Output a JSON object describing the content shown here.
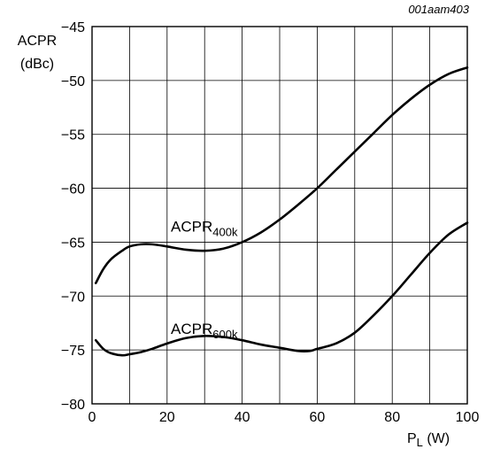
{
  "figure_code": "001aam403",
  "chart_data": {
    "type": "line",
    "ylabel_line1": "ACPR",
    "ylabel_line2": "(dBc)",
    "xlabel_main": "P",
    "xlabel_sub": "L",
    "xlabel_unit": " (W)",
    "xlim": [
      0,
      100
    ],
    "ylim": [
      -80,
      -45
    ],
    "x_ticks": [
      0,
      20,
      40,
      60,
      80,
      100
    ],
    "y_ticks": [
      -80,
      -75,
      -70,
      -65,
      -60,
      -55,
      -50,
      -45
    ],
    "x_tick_labels": [
      "0",
      "20",
      "40",
      "60",
      "80",
      "100"
    ],
    "y_tick_labels": [
      "−80",
      "−75",
      "−70",
      "−65",
      "−60",
      "−55",
      "−50",
      "−45"
    ],
    "grid": true,
    "series": [
      {
        "label_main": "ACPR",
        "label_sub": "400k",
        "label_at": [
          21,
          -64
        ],
        "x": [
          1,
          3,
          5,
          8,
          10,
          13,
          16,
          20,
          25,
          30,
          35,
          40,
          45,
          50,
          55,
          60,
          65,
          70,
          75,
          80,
          85,
          90,
          95,
          100
        ],
        "y": [
          -68.8,
          -67.5,
          -66.6,
          -65.8,
          -65.4,
          -65.2,
          -65.2,
          -65.4,
          -65.7,
          -65.8,
          -65.6,
          -65.0,
          -64.1,
          -62.9,
          -61.5,
          -60.0,
          -58.3,
          -56.6,
          -54.9,
          -53.2,
          -51.7,
          -50.4,
          -49.4,
          -48.8
        ]
      },
      {
        "label_main": "ACPR",
        "label_sub": "600k",
        "label_at": [
          21,
          -73.5
        ],
        "x": [
          1,
          3,
          5,
          8,
          10,
          13,
          16,
          20,
          25,
          30,
          35,
          40,
          45,
          50,
          55,
          58,
          60,
          65,
          70,
          75,
          80,
          85,
          90,
          95,
          100
        ],
        "y": [
          -74.1,
          -74.9,
          -75.3,
          -75.5,
          -75.4,
          -75.2,
          -74.9,
          -74.4,
          -73.9,
          -73.7,
          -73.8,
          -74.1,
          -74.5,
          -74.8,
          -75.1,
          -75.1,
          -74.9,
          -74.4,
          -73.4,
          -71.8,
          -70.0,
          -68.0,
          -66.0,
          -64.3,
          -63.2
        ]
      }
    ]
  }
}
